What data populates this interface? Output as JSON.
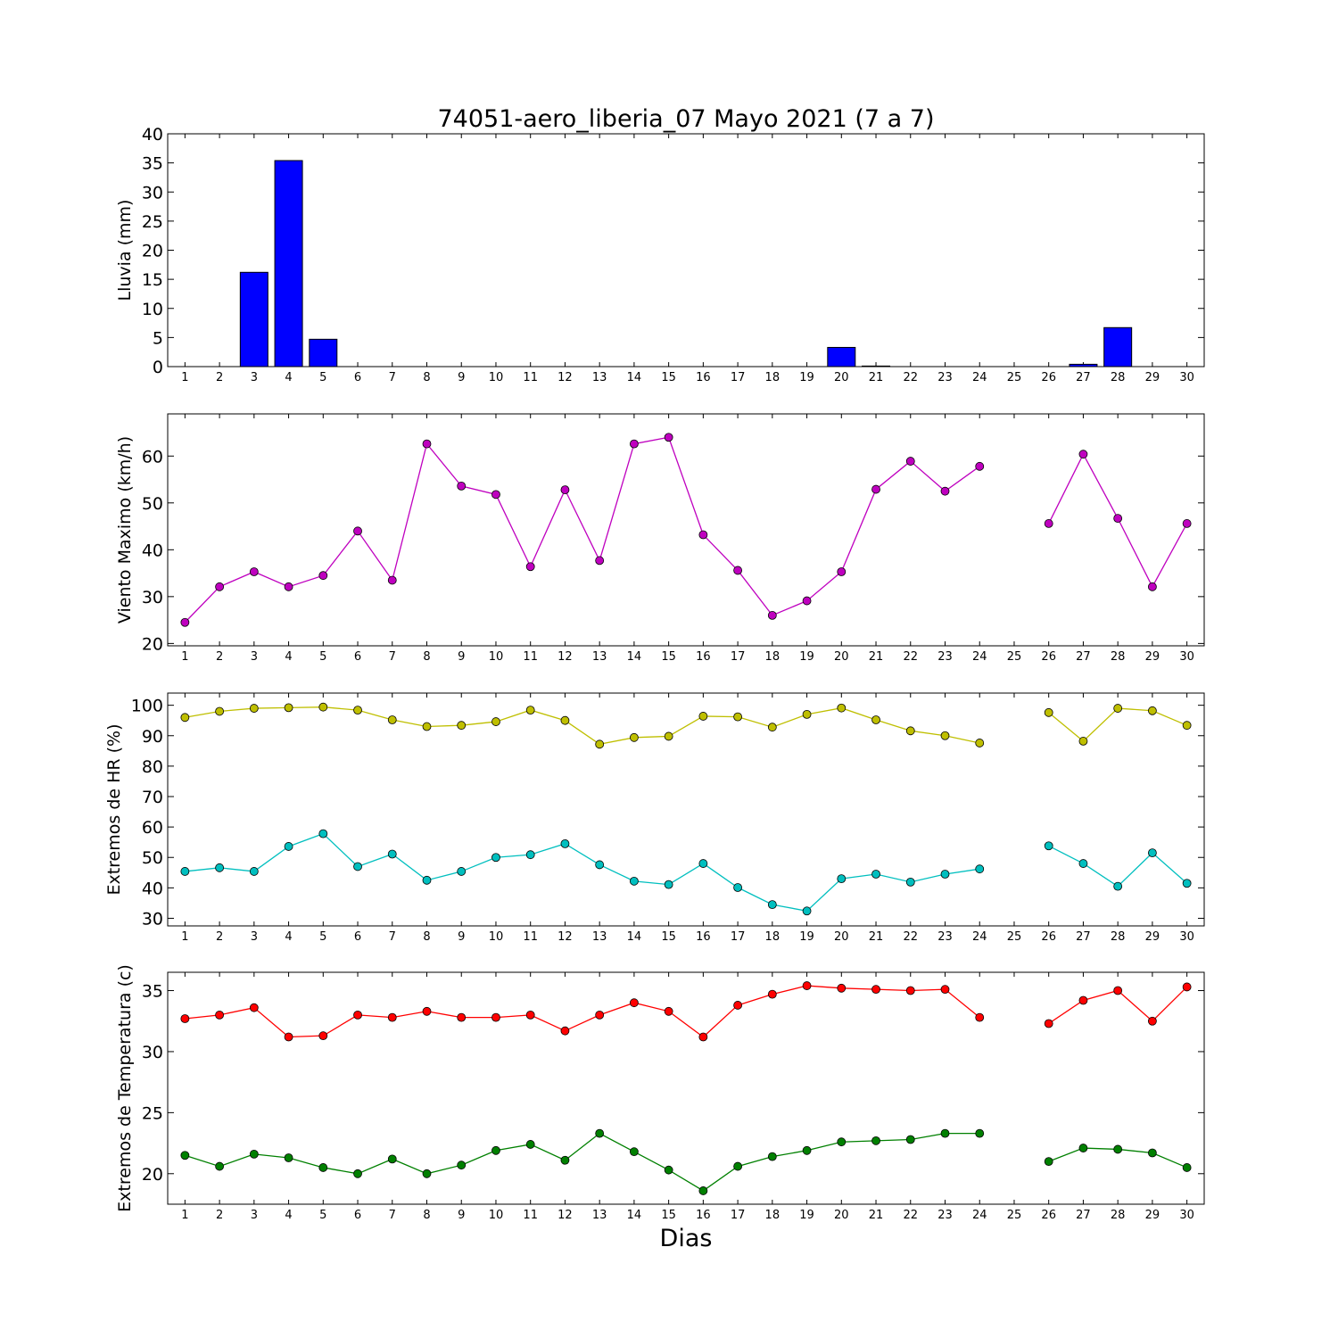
{
  "title": "74051-aero_liberia_07 Mayo 2021  (7 a 7)",
  "xlabel": "Dias",
  "colors": {
    "rain_bar": "#0000ff",
    "wind": "#bf00bf",
    "rh_max": "#bfbf00",
    "rh_min": "#00bfbf",
    "temp_max": "#ff0000",
    "temp_min": "#008000"
  },
  "chart_data": [
    {
      "type": "bar",
      "ylabel": "Lluvia (mm)",
      "categories": [
        1,
        2,
        3,
        4,
        5,
        6,
        7,
        8,
        9,
        10,
        11,
        12,
        13,
        14,
        15,
        16,
        17,
        18,
        19,
        20,
        21,
        22,
        23,
        24,
        25,
        26,
        27,
        28,
        29,
        30
      ],
      "values": [
        0,
        0,
        16.2,
        35.4,
        4.7,
        0,
        0,
        0,
        0,
        0,
        0,
        0,
        0,
        0,
        0,
        0,
        0,
        0,
        0,
        3.3,
        0.1,
        0,
        0,
        0,
        null,
        0,
        0.4,
        6.7,
        0,
        null
      ],
      "ylim": [
        0,
        40
      ],
      "yticks": [
        0,
        5,
        10,
        15,
        20,
        25,
        30,
        35,
        40
      ]
    },
    {
      "type": "line",
      "ylabel": "Viento Maximo (km/h)",
      "x": [
        1,
        2,
        3,
        4,
        5,
        6,
        7,
        8,
        9,
        10,
        11,
        12,
        13,
        14,
        15,
        16,
        17,
        18,
        19,
        20,
        21,
        22,
        23,
        24,
        25,
        26,
        27,
        28,
        29,
        30
      ],
      "series": [
        {
          "values": [
            24.5,
            32.1,
            35.3,
            32.1,
            34.5,
            44.0,
            33.5,
            62.6,
            53.6,
            51.8,
            36.4,
            52.8,
            37.7,
            62.6,
            64.0,
            43.2,
            35.6,
            26.0,
            29.1,
            35.3,
            52.9,
            58.9,
            52.5,
            57.8,
            null,
            45.6,
            60.4,
            46.7,
            32.1,
            45.6
          ]
        }
      ],
      "ylim": [
        19.5,
        69
      ],
      "yticks": [
        20,
        30,
        40,
        50,
        60
      ]
    },
    {
      "type": "line",
      "ylabel": "Extremos de HR (%)",
      "x": [
        1,
        2,
        3,
        4,
        5,
        6,
        7,
        8,
        9,
        10,
        11,
        12,
        13,
        14,
        15,
        16,
        17,
        18,
        19,
        20,
        21,
        22,
        23,
        24,
        25,
        26,
        27,
        28,
        29,
        30
      ],
      "series": [
        {
          "values": [
            96,
            98,
            99,
            99.2,
            99.4,
            98.4,
            95.2,
            93,
            93.4,
            94.6,
            98.4,
            95,
            87.2,
            89.4,
            89.8,
            96.4,
            96.2,
            92.8,
            97,
            99.1,
            95.2,
            91.6,
            90,
            87.6,
            null,
            97.6,
            88.2,
            99,
            98.2,
            93.4
          ]
        },
        {
          "values": [
            45.4,
            46.6,
            45.4,
            53.6,
            57.8,
            47,
            51.1,
            42.5,
            45.4,
            50,
            50.9,
            54.5,
            47.6,
            42.2,
            41.1,
            48,
            40.1,
            34.5,
            32.4,
            43,
            44.5,
            41.9,
            44.5,
            46.2,
            null,
            53.8,
            48,
            40.5,
            51.5,
            41.5
          ]
        }
      ],
      "ylim": [
        27.5,
        104
      ],
      "yticks": [
        30,
        40,
        50,
        60,
        70,
        80,
        90,
        100
      ]
    },
    {
      "type": "line",
      "ylabel": "Extremos de Temperatura (c)",
      "x": [
        1,
        2,
        3,
        4,
        5,
        6,
        7,
        8,
        9,
        10,
        11,
        12,
        13,
        14,
        15,
        16,
        17,
        18,
        19,
        20,
        21,
        22,
        23,
        24,
        25,
        26,
        27,
        28,
        29,
        30
      ],
      "series": [
        {
          "values": [
            32.7,
            33,
            33.6,
            31.2,
            31.3,
            33,
            32.8,
            33.3,
            32.8,
            32.8,
            33,
            31.7,
            33,
            34,
            33.3,
            31.2,
            33.8,
            34.7,
            35.4,
            35.2,
            35.1,
            35,
            35.1,
            32.8,
            null,
            32.3,
            34.2,
            35,
            32.5,
            35.3
          ]
        },
        {
          "values": [
            21.5,
            20.6,
            21.6,
            21.3,
            20.5,
            20,
            21.2,
            20,
            20.7,
            21.9,
            22.4,
            21.1,
            23.3,
            21.8,
            20.3,
            18.6,
            20.6,
            21.4,
            21.9,
            22.6,
            22.7,
            22.8,
            23.3,
            23.3,
            null,
            21,
            22.1,
            22,
            21.7,
            20.5
          ]
        }
      ],
      "ylim": [
        17.5,
        36.5
      ],
      "yticks": [
        20,
        25,
        30,
        35
      ]
    }
  ]
}
